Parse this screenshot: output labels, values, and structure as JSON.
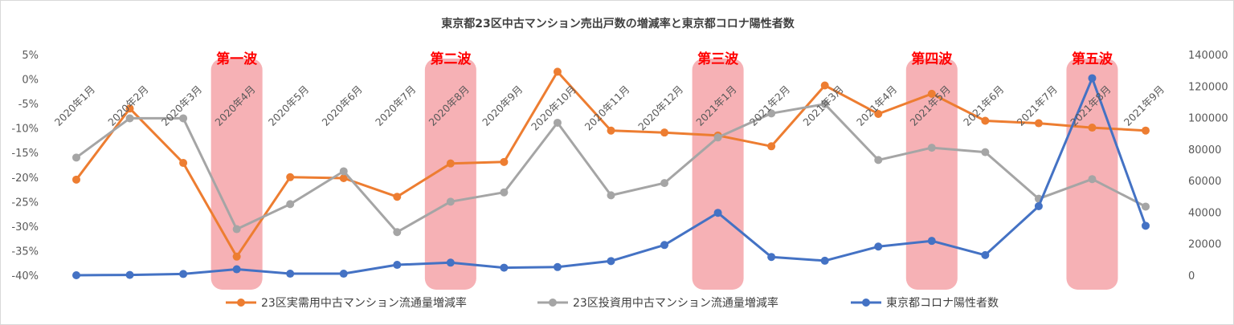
{
  "chart_data": {
    "type": "line",
    "title": "東京都23区中古マンション売出戸数の増減率と東京都コロナ陽性者数",
    "categories": [
      "2020年1月",
      "2020年2月",
      "2020年3月",
      "2020年4月",
      "2020年5月",
      "2020年6月",
      "2020年7月",
      "2020年8月",
      "2020年9月",
      "2020年10月",
      "2020年11月",
      "2020年12月",
      "2021年1月",
      "2021年2月",
      "2021年3月",
      "2021年4月",
      "2021年5月",
      "2021年6月",
      "2021年7月",
      "2021年8月",
      "2021年9月"
    ],
    "y_left": {
      "min": -40,
      "max": 5,
      "step": 5,
      "ticks": [
        "5%",
        "0%",
        "-5%",
        "-10%",
        "-15%",
        "-20%",
        "-25%",
        "-30%",
        "-35%",
        "-40%"
      ]
    },
    "y_right": {
      "min": 0,
      "max": 140000,
      "step": 20000,
      "ticks": [
        "140000",
        "120000",
        "100000",
        "80000",
        "60000",
        "40000",
        "20000",
        "0"
      ]
    },
    "series": [
      {
        "name": "23区実需用中古マンション流通量増減率",
        "axis": "left",
        "color": "#ed7d31",
        "values": [
          -20.5,
          -6,
          -17.1,
          -36.2,
          -20,
          -20.2,
          -24,
          -17.2,
          -16.9,
          1.5,
          -10.5,
          -10.9,
          -11.5,
          -13.7,
          -1.3,
          -7.1,
          -3,
          -8.5,
          -9,
          -9.9,
          -10.5
        ]
      },
      {
        "name": "23区投資用中古マンション流通量増減率",
        "axis": "left",
        "color": "#a5a5a5",
        "values": [
          -16,
          -8,
          -8,
          -30.6,
          -25.5,
          -18.8,
          -31.2,
          -25,
          -23.1,
          -8.9,
          -23.7,
          -21.2,
          -11.9,
          -7,
          -5.1,
          -16.5,
          -14,
          -14.9,
          -24.4,
          -20.4,
          -26
        ]
      },
      {
        "name": "東京都コロナ陽性者数",
        "axis": "right",
        "color": "#4472c4",
        "values": [
          0,
          200,
          800,
          3800,
          1000,
          1000,
          6600,
          8000,
          4800,
          5200,
          9000,
          19200,
          39600,
          11600,
          9200,
          18200,
          21800,
          12800,
          43800,
          125000,
          31400
        ]
      }
    ],
    "waves": [
      {
        "label": "第一波",
        "index": 3
      },
      {
        "label": "第二波",
        "index": 7
      },
      {
        "label": "第三波",
        "index": 12
      },
      {
        "label": "第四波",
        "index": 16
      },
      {
        "label": "第五波",
        "index": 19
      }
    ],
    "colors": {
      "wave_fill": "#f4a3a8",
      "wave_text": "#ff0000"
    },
    "grid": false,
    "legend_position": "bottom"
  }
}
